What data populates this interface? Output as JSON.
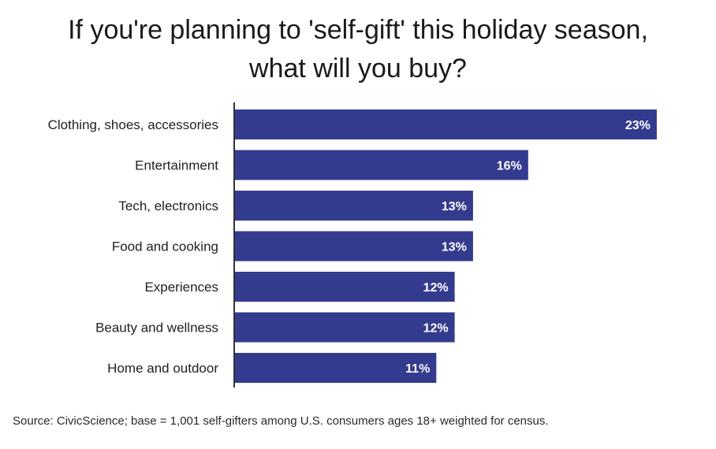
{
  "title": {
    "line1": "If you're planning to 'self-gift' this holiday season,",
    "line2": "what will you buy?"
  },
  "source": "Source: CivicScience; base = 1,001 self-gifters among U.S. consumers ages 18+ weighted for census.",
  "colors": {
    "bar": "#333b8e",
    "axis": "#333333",
    "value_label": "#ffffff"
  },
  "chart_data": {
    "type": "bar",
    "orientation": "horizontal",
    "title": "If you're planning to 'self-gift' this holiday season, what will you buy?",
    "categories": [
      "Clothing, shoes, accessories",
      "Entertainment",
      "Tech, electronics",
      "Food and cooking",
      "Experiences",
      "Beauty and wellness",
      "Home and outdoor"
    ],
    "values": [
      23,
      16,
      13,
      13,
      12,
      12,
      11
    ],
    "value_labels": [
      "23%",
      "16%",
      "13%",
      "13%",
      "12%",
      "12%",
      "11%"
    ],
    "unit": "%",
    "xlim": [
      0,
      26
    ],
    "grid": false,
    "legend": "none"
  }
}
